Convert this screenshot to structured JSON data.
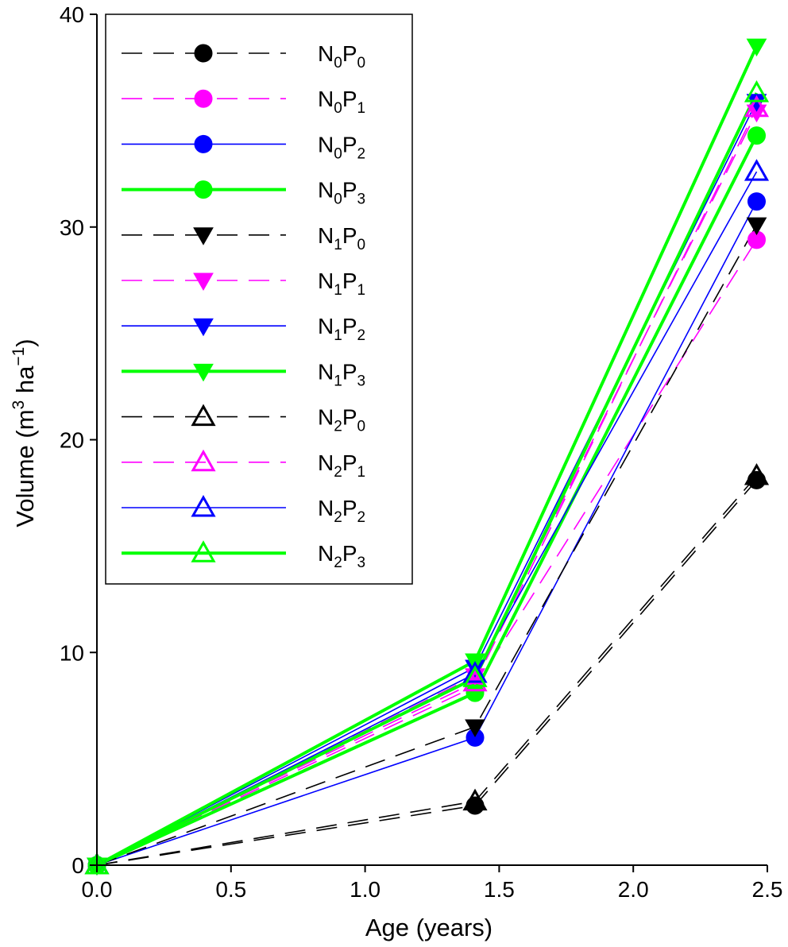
{
  "chart_data": {
    "type": "line",
    "title": "",
    "xlabel": "Age (years)",
    "ylabel": {
      "main": "Volume (m",
      "sup1": "3",
      "mid": " ha",
      "sup2": "−1",
      "end": ")"
    },
    "xlim": [
      0,
      2.5
    ],
    "ylim": [
      0,
      40
    ],
    "xticks": [
      "0.0",
      "0.5",
      "1.0",
      "1.5",
      "2.0",
      "2.5"
    ],
    "yticks": [
      "0",
      "10",
      "20",
      "30",
      "40"
    ],
    "x": [
      0,
      1.41,
      2.46
    ],
    "legend_placement": "top-left",
    "grid": false,
    "colors": {
      "black": "#000000",
      "magenta": "#ff00ff",
      "blue": "#0000ff",
      "green": "#00ff00"
    },
    "series": [
      {
        "N": "0",
        "P": "0",
        "values": [
          0,
          2.8,
          18.1
        ],
        "color": "black",
        "dash": "dashed",
        "marker": "circle",
        "fill": "filled"
      },
      {
        "N": "0",
        "P": "1",
        "values": [
          0,
          8.4,
          29.4
        ],
        "color": "magenta",
        "dash": "dashed",
        "marker": "circle",
        "fill": "filled"
      },
      {
        "N": "0",
        "P": "2",
        "values": [
          0,
          6.0,
          31.2
        ],
        "color": "blue",
        "dash": "solid",
        "marker": "circle",
        "fill": "filled"
      },
      {
        "N": "0",
        "P": "3",
        "values": [
          0,
          8.1,
          34.3
        ],
        "color": "green",
        "dash": "solid-thick",
        "marker": "circle",
        "fill": "filled"
      },
      {
        "N": "1",
        "P": "0",
        "values": [
          0,
          6.5,
          30.1
        ],
        "color": "black",
        "dash": "dashed",
        "marker": "triangle-down",
        "fill": "filled"
      },
      {
        "N": "1",
        "P": "1",
        "values": [
          0,
          8.9,
          35.4
        ],
        "color": "magenta",
        "dash": "dashed",
        "marker": "triangle-down",
        "fill": "filled"
      },
      {
        "N": "1",
        "P": "2",
        "values": [
          0,
          9.3,
          35.9
        ],
        "color": "blue",
        "dash": "solid",
        "marker": "triangle-down",
        "fill": "filled"
      },
      {
        "N": "1",
        "P": "3",
        "values": [
          0,
          9.6,
          38.5
        ],
        "color": "green",
        "dash": "solid-thick",
        "marker": "triangle-down",
        "fill": "filled"
      },
      {
        "N": "2",
        "P": "0",
        "values": [
          0,
          3.0,
          18.3
        ],
        "color": "black",
        "dash": "dashed",
        "marker": "triangle-up",
        "fill": "open"
      },
      {
        "N": "2",
        "P": "1",
        "values": [
          0,
          8.6,
          35.6
        ],
        "color": "magenta",
        "dash": "dashed",
        "marker": "triangle-up",
        "fill": "open"
      },
      {
        "N": "2",
        "P": "2",
        "values": [
          0,
          9.0,
          32.6
        ],
        "color": "blue",
        "dash": "solid",
        "marker": "triangle-up",
        "fill": "open"
      },
      {
        "N": "2",
        "P": "3",
        "values": [
          0,
          8.8,
          36.3
        ],
        "color": "green",
        "dash": "solid-thick",
        "marker": "triangle-up",
        "fill": "open"
      }
    ]
  }
}
